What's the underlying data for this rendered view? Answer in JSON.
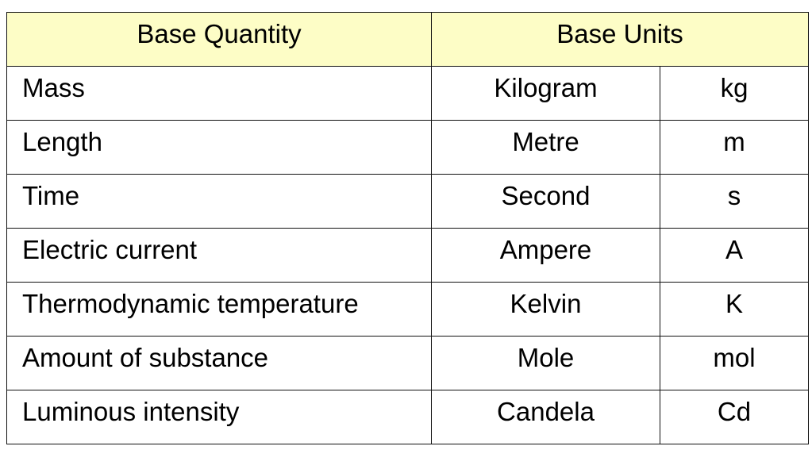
{
  "table": {
    "header": [
      "Base Quantity",
      "Base Units"
    ],
    "rows": [
      [
        "Mass",
        "Kilogram",
        "kg"
      ],
      [
        "Length",
        "Metre",
        "m"
      ],
      [
        "Time",
        "Second",
        "s"
      ],
      [
        "Electric current",
        "Ampere",
        "A"
      ],
      [
        "Thermodynamic temperature",
        "Kelvin",
        "K"
      ],
      [
        "Amount of substance",
        "Mole",
        "mol"
      ],
      [
        "Luminous intensity",
        "Candela",
        "Cd"
      ]
    ]
  }
}
